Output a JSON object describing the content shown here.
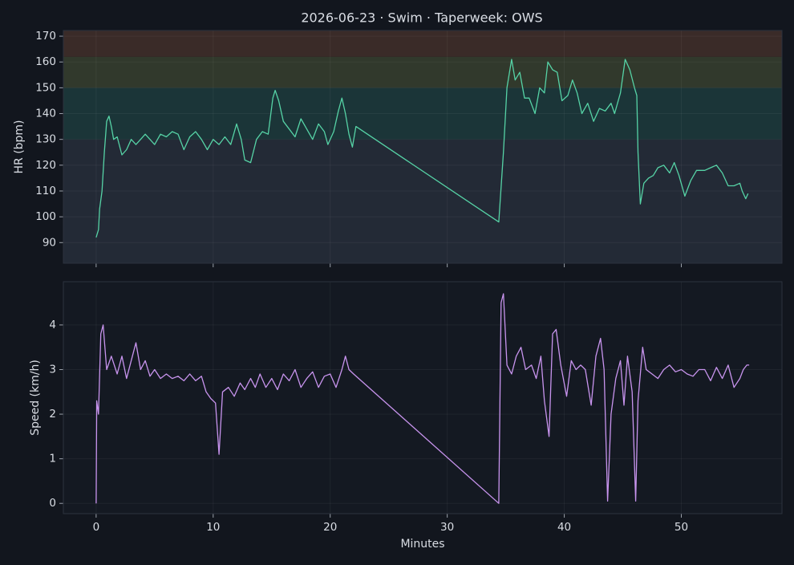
{
  "chart_data": [
    {
      "type": "line",
      "title": "2026-06-23 · Swim · Taperweek: OWS",
      "ylabel": "HR (bpm)",
      "xlim": [
        -2.8,
        58.6
      ],
      "xticks": [
        0,
        10,
        20,
        30,
        40,
        50
      ],
      "show_xtick_labels": false,
      "ylim": [
        82,
        172.2
      ],
      "yticks": [
        90,
        100,
        110,
        120,
        130,
        140,
        150,
        160,
        170
      ],
      "grid": true,
      "zones": [
        {
          "from": 82,
          "to": 130,
          "color": "#232a36"
        },
        {
          "from": 130,
          "to": 150,
          "color": "#1b3538"
        },
        {
          "from": 150,
          "to": 162,
          "color": "#31392c"
        },
        {
          "from": 162,
          "to": 172.2,
          "color": "#3a2b28"
        }
      ],
      "color": "#56d3a6",
      "x": [
        0,
        0.2,
        0.3,
        0.5,
        0.7,
        0.9,
        1.1,
        1.3,
        1.5,
        1.8,
        2.2,
        2.6,
        3,
        3.4,
        3.8,
        4.2,
        4.6,
        5,
        5.5,
        6,
        6.5,
        7,
        7.5,
        8,
        8.5,
        9,
        9.5,
        10,
        10.5,
        11,
        11.5,
        12,
        12.4,
        12.7,
        13.2,
        13.7,
        14.2,
        14.7,
        15.1,
        15.3,
        15.6,
        16,
        16.5,
        17,
        17.5,
        18,
        18.5,
        19,
        19.5,
        19.8,
        20.3,
        20.7,
        21,
        21.3,
        21.6,
        21.9,
        22.2,
        34.4,
        34.8,
        35.1,
        35.5,
        35.8,
        36.2,
        36.6,
        37,
        37.5,
        37.9,
        38.3,
        38.6,
        39,
        39.4,
        39.8,
        40.3,
        40.7,
        41.1,
        41.5,
        42,
        42.5,
        43,
        43.5,
        44,
        44.3,
        44.8,
        45.2,
        45.6,
        46,
        46.2,
        46.3,
        46.5,
        46.8,
        47.2,
        47.6,
        48,
        48.5,
        49,
        49.4,
        49.8,
        50.3,
        50.8,
        51.3,
        52,
        52.5,
        53,
        53.5,
        54,
        54.5,
        55,
        55.2,
        55.5,
        55.7
      ],
      "values": [
        92,
        95,
        103,
        110,
        125,
        137,
        139,
        135,
        130,
        131,
        124,
        126,
        130,
        128,
        130,
        132,
        130,
        128,
        132,
        131,
        133,
        132,
        126,
        131,
        133,
        130,
        126,
        130,
        128,
        131,
        128,
        136,
        130,
        122,
        121,
        130,
        133,
        132,
        146,
        149,
        145,
        137,
        134,
        131,
        138,
        134,
        130,
        136,
        133,
        128,
        133,
        141,
        146,
        140,
        132,
        127,
        135,
        98,
        125,
        150,
        161,
        153,
        156,
        146,
        146,
        140,
        150,
        148,
        160,
        157,
        156,
        145,
        147,
        153,
        148,
        140,
        144,
        137,
        142,
        141,
        144,
        140,
        148,
        161,
        157,
        150,
        147,
        125,
        105,
        113,
        115,
        116,
        119,
        120,
        117,
        121,
        116,
        108,
        114,
        118,
        118,
        119,
        120,
        117,
        112,
        112,
        113,
        110,
        107,
        109
      ]
    },
    {
      "type": "line",
      "ylabel": "Speed (km/h)",
      "xlabel": "Minutes",
      "xlim": [
        -2.8,
        58.6
      ],
      "xticks": [
        0,
        10,
        20,
        30,
        40,
        50
      ],
      "show_xtick_labels": true,
      "ylim": [
        -0.23,
        4.97
      ],
      "yticks": [
        0,
        1,
        2,
        3,
        4
      ],
      "grid": true,
      "color": "#c894ee",
      "x": [
        0,
        0.05,
        0.2,
        0.4,
        0.6,
        0.9,
        1.3,
        1.8,
        2.2,
        2.6,
        3,
        3.4,
        3.8,
        4.2,
        4.6,
        5,
        5.5,
        6,
        6.5,
        7,
        7.5,
        8,
        8.5,
        9,
        9.4,
        9.8,
        10.2,
        10.5,
        10.8,
        11.3,
        11.8,
        12.3,
        12.7,
        13.2,
        13.6,
        14,
        14.5,
        15,
        15.5,
        16,
        16.5,
        17,
        17.5,
        18,
        18.5,
        19,
        19.5,
        20,
        20.5,
        21,
        21.3,
        21.6,
        22,
        34.4,
        34.5,
        34.6,
        34.8,
        35.1,
        35.5,
        35.9,
        36.3,
        36.7,
        37.2,
        37.6,
        38,
        38.3,
        38.7,
        39,
        39.3,
        39.7,
        40.2,
        40.6,
        41,
        41.4,
        41.8,
        42.3,
        42.7,
        43.1,
        43.4,
        43.7,
        44,
        44.4,
        44.8,
        45.1,
        45.4,
        45.8,
        46.1,
        46.3,
        46.7,
        47,
        47.5,
        48,
        48.5,
        49,
        49.5,
        50,
        50.5,
        51,
        51.5,
        52,
        52.5,
        53,
        53.5,
        54,
        54.5,
        55,
        55.3,
        55.6,
        55.8
      ],
      "values": [
        0,
        2.3,
        2.0,
        3.8,
        4.0,
        3.0,
        3.3,
        2.9,
        3.3,
        2.8,
        3.2,
        3.6,
        3.0,
        3.2,
        2.85,
        3.0,
        2.8,
        2.9,
        2.8,
        2.85,
        2.75,
        2.9,
        2.75,
        2.85,
        2.5,
        2.35,
        2.25,
        1.1,
        2.5,
        2.6,
        2.4,
        2.7,
        2.55,
        2.8,
        2.6,
        2.9,
        2.6,
        2.8,
        2.55,
        2.9,
        2.75,
        3.0,
        2.6,
        2.8,
        2.95,
        2.6,
        2.85,
        2.9,
        2.6,
        3.0,
        3.3,
        3.0,
        2.9,
        0,
        2.2,
        4.5,
        4.7,
        3.1,
        2.9,
        3.3,
        3.5,
        3.0,
        3.1,
        2.8,
        3.3,
        2.3,
        1.5,
        3.8,
        3.9,
        3.1,
        2.4,
        3.2,
        3.0,
        3.1,
        3.0,
        2.2,
        3.3,
        3.7,
        3.0,
        0.05,
        2.0,
        2.8,
        3.2,
        2.2,
        3.3,
        2.5,
        0.05,
        2.3,
        3.5,
        3.0,
        2.9,
        2.8,
        3.0,
        3.1,
        2.95,
        3.0,
        2.9,
        2.85,
        3.0,
        3.0,
        2.75,
        3.05,
        2.8,
        3.1,
        2.6,
        2.8,
        3.0,
        3.1,
        3.1
      ]
    }
  ]
}
